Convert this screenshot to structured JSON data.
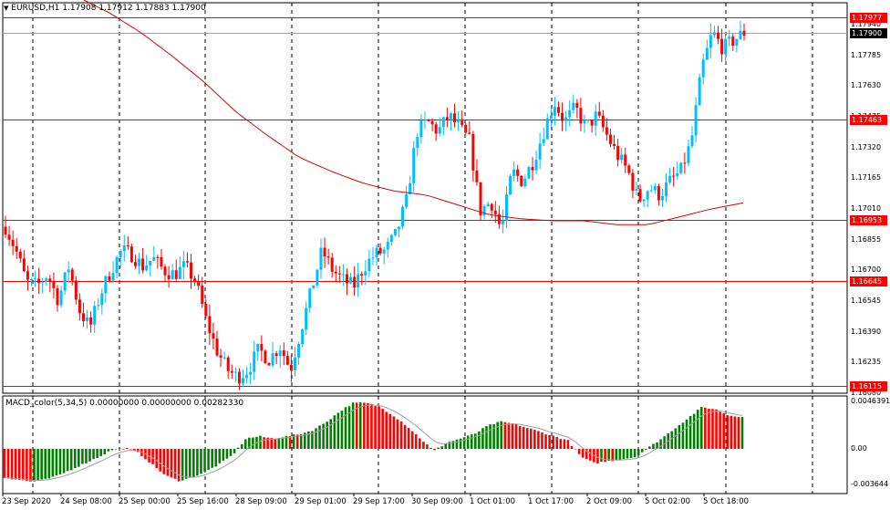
{
  "header": {
    "symbol": "EURUSD,H1",
    "ohlc": "1.17908 1.17912 1.17883 1.17900"
  },
  "macd_header": "MACD_color(5,34,5) 0.00000000 0.00000000 0.00282330",
  "price_axis": {
    "min": 1.1608,
    "max": 1.1805,
    "ticks": [
      "1.17940",
      "1.17785",
      "1.17630",
      "1.17475",
      "1.17320",
      "1.17165",
      "1.17010",
      "1.16855",
      "1.16700",
      "1.16545",
      "1.16390",
      "1.16235",
      "1.16080"
    ]
  },
  "price_lines": [
    {
      "label": "1.17977",
      "value": 1.17977,
      "color": "#ff0000"
    },
    {
      "label": "1.17463",
      "value": 1.17463,
      "color": "#ff0000"
    },
    {
      "label": "1.16953",
      "value": 1.16953,
      "color": "#ff0000"
    },
    {
      "label": "1.16645",
      "value": 1.16645,
      "color": "#ff0000"
    },
    {
      "label": "1.16115",
      "value": 1.16115,
      "color": "#ff0000"
    }
  ],
  "current_price": {
    "label": "1.17900",
    "value": 1.179
  },
  "macd_axis": {
    "labels": [
      "0.0046391",
      "0.00",
      "-0.003644"
    ],
    "max": 0.0046391,
    "min": -0.003644
  },
  "time_axis": [
    "23 Sep 2020",
    "24 Sep 08:00",
    "25 Sep 00:00",
    "25 Sep 16:00",
    "28 Sep 09:00",
    "29 Sep 01:00",
    "29 Sep 17:00",
    "30 Sep 09:00",
    "1 Oct 01:00",
    "1 Oct 17:00",
    "2 Oct 09:00",
    "5 Oct 02:00",
    "5 Oct 18:00"
  ],
  "colors": {
    "bull": "#00bfff",
    "bear": "#ff0000",
    "ma": "#dd0000",
    "macd_up": "#008000",
    "macd_down": "#ff0000",
    "signal": "#a0a0a0",
    "grid": "#000000",
    "axis": "#000000"
  },
  "chart_data": {
    "type": "candlestick",
    "price_path": [
      1.1692,
      1.168,
      1.1664,
      1.1662,
      1.1668,
      1.1655,
      1.1672,
      1.165,
      1.1641,
      1.1658,
      1.167,
      1.168,
      1.1678,
      1.1672,
      1.1676,
      1.167,
      1.1668,
      1.1672,
      1.1665,
      1.1645,
      1.163,
      1.162,
      1.1616,
      1.162,
      1.163,
      1.1625,
      1.1632,
      1.162,
      1.164,
      1.166,
      1.168,
      1.167,
      1.1665,
      1.1662,
      1.1672,
      1.1678,
      1.168,
      1.1688,
      1.1705,
      1.174,
      1.1745,
      1.174,
      1.1748,
      1.1742,
      1.1735,
      1.17,
      1.1705,
      1.169,
      1.172,
      1.1715,
      1.1725,
      1.174,
      1.1755,
      1.1745,
      1.1752,
      1.1742,
      1.1748,
      1.1738,
      1.1728,
      1.172,
      1.1705,
      1.1712,
      1.1708,
      1.1715,
      1.172,
      1.1735,
      1.1772,
      1.179,
      1.1782,
      1.1786,
      1.179
    ],
    "ma_path": [
      1.181,
      1.1808,
      1.18,
      1.179,
      1.1778,
      1.1765,
      1.175,
      1.1738,
      1.1727,
      1.172,
      1.1714,
      1.171,
      1.1708,
      1.1703,
      1.1698,
      1.1696,
      1.1695,
      1.1695,
      1.1693,
      1.1693,
      1.1697,
      1.1701,
      1.1704
    ],
    "macd_path": [
      -0.0028,
      -0.003,
      -0.0032,
      -0.003,
      -0.0026,
      -0.002,
      -0.0014,
      -0.0008,
      -0.0001,
      0.0001,
      -0.0004,
      -0.0015,
      -0.0026,
      -0.0031,
      -0.0028,
      -0.0022,
      -0.0015,
      -0.0006,
      0.001,
      0.0012,
      0.001,
      0.0012,
      0.0014,
      0.0018,
      0.0026,
      0.0036,
      0.0044,
      0.0044,
      0.004,
      0.0032,
      0.0022,
      0.001,
      -0.0002,
      0.0006,
      0.001,
      0.0014,
      0.0022,
      0.0026,
      0.0024,
      0.002,
      0.0016,
      0.0012,
      0.0008,
      -0.0008,
      -0.0014,
      -0.0012,
      -0.001,
      -0.0008,
      0.0001,
      0.001,
      0.002,
      0.003,
      0.004,
      0.0038,
      0.0032,
      0.0031
    ]
  }
}
